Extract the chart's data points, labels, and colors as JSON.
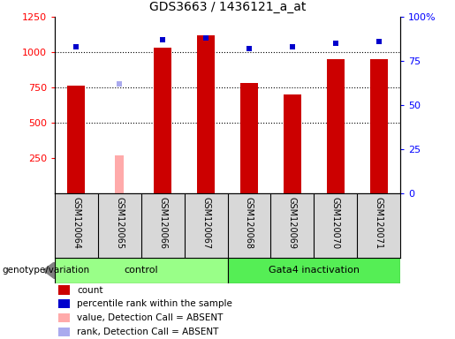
{
  "title": "GDS3663 / 1436121_a_at",
  "samples": [
    "GSM120064",
    "GSM120065",
    "GSM120066",
    "GSM120067",
    "GSM120068",
    "GSM120069",
    "GSM120070",
    "GSM120071"
  ],
  "count_values": [
    760,
    null,
    1030,
    1120,
    780,
    700,
    950,
    950
  ],
  "count_absent": [
    null,
    270,
    null,
    null,
    null,
    null,
    null,
    null
  ],
  "percentile_values": [
    83,
    null,
    87,
    88,
    82,
    83,
    85,
    86
  ],
  "percentile_absent": [
    null,
    62,
    null,
    null,
    null,
    null,
    null,
    null
  ],
  "ylim_left": [
    0,
    1250
  ],
  "ylim_right": [
    0,
    100
  ],
  "yticks_left": [
    250,
    500,
    750,
    1000,
    1250
  ],
  "yticks_right": [
    0,
    25,
    50,
    75,
    100
  ],
  "bar_color": "#cc0000",
  "bar_absent_color": "#ffaaaa",
  "dot_color": "#0000cc",
  "dot_absent_color": "#aaaaee",
  "ctrl_color": "#99ff88",
  "gata_color": "#55ee55",
  "sample_bg": "#d8d8d8",
  "bar_width": 0.4,
  "genotype_label": "genotype/variation"
}
